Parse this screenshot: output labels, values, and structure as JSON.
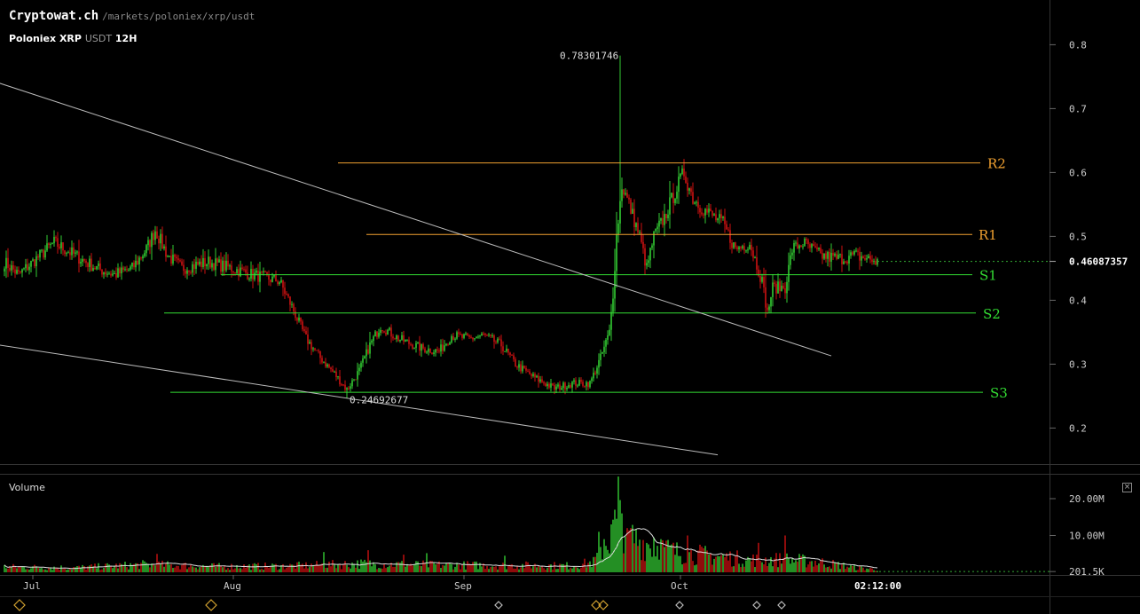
{
  "header": {
    "site": "Cryptowat.ch",
    "path": "/markets/poloniex/xrp/usdt",
    "exchange": "Poloniex",
    "base": "XRP",
    "quote": "USDT",
    "interval": "12H"
  },
  "colors": {
    "up": "#33cc33",
    "down": "#cc1111",
    "support": "#33dd33",
    "resistance": "#f0a030",
    "trendline": "#bbbbbb",
    "grid_text": "#cccccc"
  },
  "volume_panel": {
    "title": "Volume",
    "close_label": "×"
  },
  "chart_data": {
    "type": "candlestick",
    "price_axis": {
      "ticks": [
        0.2,
        0.3,
        0.4,
        0.5,
        0.6,
        0.7,
        0.8
      ],
      "tick_labels": [
        "0.2",
        "0.3",
        "0.4",
        "0.5",
        "0.6",
        "0.7",
        "0.8"
      ],
      "range": [
        0.145,
        0.87
      ]
    },
    "volume_axis": {
      "tick_labels": [
        "20.00M",
        "10.00M",
        "201.5K"
      ],
      "ticks": [
        20000000,
        10000000,
        201500
      ],
      "range": [
        0,
        26500000
      ]
    },
    "time_axis": {
      "labels": [
        "Jul",
        "Aug",
        "Sep",
        "Oct",
        "02:12:00"
      ]
    },
    "current_price": 0.46087357,
    "current_price_label": "0.46087357",
    "high_annotation": {
      "value": 0.78301746,
      "label": "0.78301746"
    },
    "low_annotation": {
      "value": 0.24692677,
      "label": "0.24692677"
    },
    "levels": [
      {
        "name": "R2",
        "price": 0.615,
        "kind": "resistance"
      },
      {
        "name": "R1",
        "price": 0.503,
        "kind": "resistance"
      },
      {
        "name": "S1",
        "price": 0.44,
        "kind": "support"
      },
      {
        "name": "S2",
        "price": 0.38,
        "kind": "support"
      },
      {
        "name": "S3",
        "price": 0.256,
        "kind": "support"
      }
    ],
    "trendlines": [
      {
        "name": "upper-trendline",
        "from": {
          "bar": -3,
          "price": 0.74
        },
        "to": {
          "bar": 466,
          "price": 0.313
        }
      },
      {
        "name": "lower-trendline",
        "from": {
          "bar": -3,
          "price": 0.33
        },
        "to": {
          "bar": 402,
          "price": 0.158
        }
      }
    ],
    "close_anchors": [
      [
        0,
        0.46
      ],
      [
        8,
        0.44
      ],
      [
        20,
        0.47
      ],
      [
        28,
        0.49
      ],
      [
        40,
        0.47
      ],
      [
        52,
        0.45
      ],
      [
        62,
        0.44
      ],
      [
        72,
        0.45
      ],
      [
        80,
        0.48
      ],
      [
        85,
        0.51
      ],
      [
        92,
        0.47
      ],
      [
        100,
        0.45
      ],
      [
        115,
        0.46
      ],
      [
        128,
        0.45
      ],
      [
        140,
        0.44
      ],
      [
        155,
        0.43
      ],
      [
        162,
        0.39
      ],
      [
        170,
        0.34
      ],
      [
        178,
        0.31
      ],
      [
        186,
        0.285
      ],
      [
        193,
        0.26
      ],
      [
        200,
        0.29
      ],
      [
        206,
        0.33
      ],
      [
        212,
        0.36
      ],
      [
        222,
        0.34
      ],
      [
        235,
        0.325
      ],
      [
        245,
        0.32
      ],
      [
        252,
        0.345
      ],
      [
        262,
        0.34
      ],
      [
        270,
        0.345
      ],
      [
        280,
        0.33
      ],
      [
        288,
        0.3
      ],
      [
        298,
        0.28
      ],
      [
        310,
        0.262
      ],
      [
        320,
        0.27
      ],
      [
        330,
        0.27
      ],
      [
        336,
        0.31
      ],
      [
        341,
        0.35
      ],
      [
        343,
        0.41
      ],
      [
        345,
        0.5
      ],
      [
        348,
        0.58
      ],
      [
        352,
        0.55
      ],
      [
        358,
        0.5
      ],
      [
        362,
        0.45
      ],
      [
        366,
        0.5
      ],
      [
        372,
        0.53
      ],
      [
        378,
        0.57
      ],
      [
        383,
        0.6
      ],
      [
        388,
        0.56
      ],
      [
        395,
        0.54
      ],
      [
        405,
        0.52
      ],
      [
        412,
        0.48
      ],
      [
        420,
        0.49
      ],
      [
        427,
        0.43
      ],
      [
        430,
        0.38
      ],
      [
        433,
        0.42
      ],
      [
        440,
        0.42
      ],
      [
        444,
        0.48
      ],
      [
        450,
        0.49
      ],
      [
        460,
        0.47
      ],
      [
        470,
        0.465
      ],
      [
        480,
        0.47
      ],
      [
        492,
        0.46
      ]
    ],
    "volume_anchors": [
      [
        0,
        1400000
      ],
      [
        40,
        1200000
      ],
      [
        80,
        2000000
      ],
      [
        120,
        1500000
      ],
      [
        160,
        1600000
      ],
      [
        200,
        2200000
      ],
      [
        240,
        1900000
      ],
      [
        280,
        1800000
      ],
      [
        320,
        1700000
      ],
      [
        332,
        2600000
      ],
      [
        340,
        8000000
      ],
      [
        346,
        12000000
      ],
      [
        348,
        14000000
      ],
      [
        352,
        9000000
      ],
      [
        365,
        7000000
      ],
      [
        380,
        5000000
      ],
      [
        400,
        4200000
      ],
      [
        420,
        3200000
      ],
      [
        440,
        3300000
      ],
      [
        460,
        2600000
      ],
      [
        480,
        1200000
      ],
      [
        495,
        600000
      ]
    ],
    "volume_spikes": [
      [
        335,
        11000000
      ],
      [
        338,
        9000000
      ],
      [
        342,
        13000000
      ],
      [
        344,
        17000000
      ],
      [
        346,
        26000000
      ],
      [
        348,
        16000000
      ],
      [
        351,
        12000000
      ],
      [
        366,
        9500000
      ],
      [
        370,
        9000000
      ],
      [
        385,
        10000000
      ],
      [
        425,
        8000000
      ],
      [
        440,
        10000000
      ],
      [
        86,
        5000000
      ],
      [
        180,
        5500000
      ],
      [
        205,
        6000000
      ],
      [
        225,
        4800000
      ],
      [
        238,
        5200000
      ],
      [
        282,
        4500000
      ]
    ],
    "special": {
      "high_bar": 347,
      "low_bar": 193
    }
  }
}
